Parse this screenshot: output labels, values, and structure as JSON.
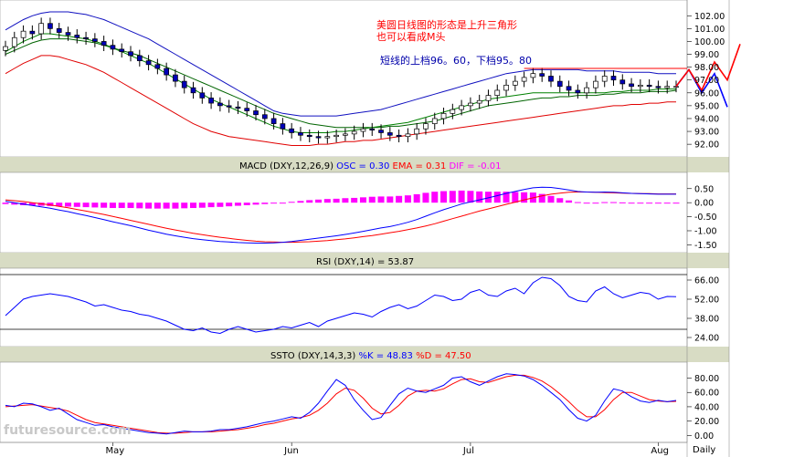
{
  "chart_data": [
    {
      "type": "candlestick",
      "panel": "price",
      "annotations": [
        "美圆日线图的形态是上升三角形",
        "也可以看成M头",
        "短线的上档96。60，下档95。80"
      ],
      "yticks": [
        92.0,
        93.0,
        94.0,
        95.0,
        96.0,
        97.0,
        98.0,
        99.0,
        100.0,
        101.0,
        102.0
      ],
      "ylim": [
        91.3,
        102.8
      ],
      "series": [
        {
          "name": "close",
          "values": [
            99.6,
            100.3,
            100.8,
            100.6,
            101.4,
            101.0,
            100.7,
            100.5,
            100.3,
            100.2,
            100.0,
            99.7,
            99.4,
            99.2,
            98.9,
            98.5,
            98.2,
            97.9,
            97.4,
            96.9,
            96.4,
            96.0,
            95.6,
            95.2,
            95.0,
            94.9,
            94.8,
            94.6,
            94.3,
            94.0,
            93.6,
            93.2,
            92.9,
            92.7,
            92.6,
            92.5,
            92.6,
            92.7,
            92.8,
            93.0,
            93.2,
            93.1,
            92.9,
            92.7,
            92.6,
            92.8,
            93.2,
            93.6,
            94.0,
            94.4,
            94.7,
            95.0,
            95.2,
            95.4,
            95.8,
            96.2,
            96.6,
            96.9,
            97.2,
            97.5,
            97.3,
            96.9,
            96.5,
            96.2,
            96.0,
            96.4,
            96.9,
            97.3,
            97.0,
            96.7,
            96.5,
            96.6,
            96.5,
            96.4,
            96.5,
            96.5
          ]
        },
        {
          "name": "ma_short",
          "values": [
            99.2,
            99.6,
            100.0,
            100.3,
            100.6,
            100.6,
            100.5,
            100.4,
            100.3,
            100.2,
            100.0,
            99.8,
            99.5,
            99.2,
            98.9,
            98.6,
            98.3,
            97.9,
            97.5,
            97.1,
            96.7,
            96.3,
            95.9,
            95.5,
            95.2,
            94.9,
            94.6,
            94.3,
            94.0,
            93.7,
            93.4,
            93.2,
            93.0,
            92.9,
            92.9,
            92.9,
            92.9,
            93.0,
            93.0,
            93.1,
            93.2,
            93.3,
            93.4,
            93.5,
            93.6,
            93.7,
            93.9,
            94.1,
            94.3,
            94.5,
            94.7,
            94.9,
            95.1,
            95.3,
            95.5,
            95.6,
            95.7,
            95.8,
            95.9,
            96.0,
            96.0,
            96.0,
            96.0,
            96.0,
            96.0,
            96.0,
            96.0,
            96.0,
            96.1,
            96.1,
            96.2,
            96.2,
            96.2,
            96.3,
            96.3,
            96.3
          ]
        },
        {
          "name": "ma_long",
          "values": [
            99.0,
            99.3,
            99.6,
            99.9,
            100.1,
            100.2,
            100.2,
            100.2,
            100.1,
            100.0,
            99.9,
            99.7,
            99.5,
            99.3,
            99.1,
            98.9,
            98.6,
            98.3,
            98.0,
            97.7,
            97.4,
            97.1,
            96.8,
            96.5,
            96.2,
            95.9,
            95.6,
            95.3,
            95.0,
            94.7,
            94.4,
            94.2,
            94.0,
            93.8,
            93.6,
            93.5,
            93.4,
            93.3,
            93.3,
            93.3,
            93.3,
            93.3,
            93.3,
            93.4,
            93.4,
            93.5,
            93.6,
            93.7,
            93.8,
            94.0,
            94.2,
            94.4,
            94.6,
            94.8,
            95.0,
            95.1,
            95.2,
            95.3,
            95.4,
            95.5,
            95.6,
            95.6,
            95.7,
            95.7,
            95.8,
            95.8,
            95.8,
            95.9,
            95.9,
            96.0,
            96.0,
            96.0,
            96.1,
            96.1,
            96.1,
            96.2
          ]
        },
        {
          "name": "band_upper",
          "values": [
            100.9,
            101.3,
            101.7,
            102.0,
            102.2,
            102.3,
            102.3,
            102.3,
            102.2,
            102.1,
            101.9,
            101.7,
            101.4,
            101.1,
            100.8,
            100.5,
            100.2,
            99.8,
            99.4,
            99.0,
            98.6,
            98.2,
            97.8,
            97.4,
            97.0,
            96.6,
            96.2,
            95.8,
            95.4,
            95.0,
            94.6,
            94.4,
            94.3,
            94.2,
            94.2,
            94.2,
            94.2,
            94.2,
            94.3,
            94.4,
            94.5,
            94.6,
            94.7,
            94.9,
            95.1,
            95.3,
            95.5,
            95.7,
            95.9,
            96.1,
            96.3,
            96.5,
            96.7,
            96.9,
            97.1,
            97.3,
            97.5,
            97.6,
            97.7,
            97.8,
            97.8,
            97.8,
            97.8,
            97.8,
            97.8,
            97.7,
            97.7,
            97.7,
            97.7,
            97.6,
            97.6,
            97.6,
            97.6,
            97.5,
            97.5,
            97.5
          ]
        },
        {
          "name": "band_lower",
          "values": [
            97.5,
            97.9,
            98.3,
            98.6,
            98.9,
            98.9,
            98.8,
            98.6,
            98.4,
            98.2,
            97.9,
            97.6,
            97.2,
            96.8,
            96.4,
            96.0,
            95.6,
            95.2,
            94.8,
            94.4,
            94.0,
            93.6,
            93.3,
            93.0,
            92.8,
            92.6,
            92.5,
            92.4,
            92.3,
            92.2,
            92.1,
            92.0,
            91.9,
            91.9,
            91.9,
            92.0,
            92.0,
            92.1,
            92.2,
            92.2,
            92.3,
            92.3,
            92.4,
            92.5,
            92.6,
            92.7,
            92.8,
            92.9,
            93.0,
            93.1,
            93.2,
            93.3,
            93.4,
            93.5,
            93.6,
            93.7,
            93.8,
            93.9,
            94.0,
            94.1,
            94.2,
            94.3,
            94.4,
            94.5,
            94.6,
            94.7,
            94.8,
            94.9,
            95.0,
            95.0,
            95.1,
            95.1,
            95.2,
            95.2,
            95.3,
            95.3
          ]
        }
      ],
      "resistance": 97.9,
      "projection": [
        {
          "color": "#0000ff",
          "points": [
            [
              75,
              96.5
            ],
            [
              76,
              97.8
            ],
            [
              77,
              96.0
            ],
            [
              78,
              97.5
            ],
            [
              79,
              94.9
            ]
          ]
        },
        {
          "color": "#ff0000",
          "points": [
            [
              75,
              96.5
            ],
            [
              76,
              97.8
            ],
            [
              77,
              96.2
            ],
            [
              78,
              98.4
            ],
            [
              79,
              97.0
            ],
            [
              80,
              99.8
            ]
          ]
        }
      ]
    },
    {
      "type": "line",
      "panel": "macd",
      "title": "MACD (DXY,12,26,9)",
      "legend": [
        {
          "label": "OSC = 0.30",
          "color": "#0000ff"
        },
        {
          "label": "EMA = 0.31",
          "color": "#ff0000"
        },
        {
          "label": "DIF = -0.01",
          "color": "#ff00ff"
        }
      ],
      "yticks": [
        0.5,
        0.0,
        -0.5,
        -1.0,
        -1.5
      ],
      "ytick_labels": [
        "0.50",
        "0.00",
        "-0.50",
        "-1.00",
        "-1.50"
      ],
      "ylim": [
        -1.65,
        0.85
      ],
      "osc": [
        0.05,
        0.0,
        -0.05,
        -0.1,
        -0.15,
        -0.2,
        -0.26,
        -0.32,
        -0.39,
        -0.46,
        -0.53,
        -0.6,
        -0.68,
        -0.75,
        -0.82,
        -0.9,
        -0.98,
        -1.05,
        -1.12,
        -1.18,
        -1.23,
        -1.28,
        -1.32,
        -1.35,
        -1.38,
        -1.4,
        -1.42,
        -1.43,
        -1.44,
        -1.44,
        -1.43,
        -1.41,
        -1.38,
        -1.34,
        -1.3,
        -1.26,
        -1.22,
        -1.18,
        -1.13,
        -1.08,
        -1.02,
        -0.96,
        -0.9,
        -0.85,
        -0.78,
        -0.7,
        -0.6,
        -0.48,
        -0.36,
        -0.25,
        -0.15,
        -0.05,
        0.03,
        0.1,
        0.17,
        0.25,
        0.33,
        0.4,
        0.47,
        0.53,
        0.55,
        0.54,
        0.5,
        0.45,
        0.4,
        0.38,
        0.37,
        0.38,
        0.37,
        0.35,
        0.33,
        0.32,
        0.31,
        0.3,
        0.3,
        0.3
      ],
      "ema": [
        0.1,
        0.07,
        0.04,
        0.0,
        -0.04,
        -0.08,
        -0.13,
        -0.18,
        -0.24,
        -0.3,
        -0.36,
        -0.42,
        -0.49,
        -0.56,
        -0.63,
        -0.7,
        -0.77,
        -0.84,
        -0.91,
        -0.97,
        -1.03,
        -1.09,
        -1.14,
        -1.19,
        -1.23,
        -1.27,
        -1.31,
        -1.34,
        -1.37,
        -1.39,
        -1.4,
        -1.41,
        -1.41,
        -1.4,
        -1.39,
        -1.37,
        -1.35,
        -1.32,
        -1.29,
        -1.25,
        -1.21,
        -1.17,
        -1.12,
        -1.07,
        -1.02,
        -0.96,
        -0.9,
        -0.83,
        -0.75,
        -0.66,
        -0.57,
        -0.48,
        -0.39,
        -0.3,
        -0.22,
        -0.14,
        -0.06,
        0.02,
        0.1,
        0.17,
        0.24,
        0.3,
        0.34,
        0.37,
        0.38,
        0.38,
        0.37,
        0.36,
        0.35,
        0.34,
        0.33,
        0.32,
        0.32,
        0.31,
        0.31,
        0.31
      ],
      "dif": [
        -0.05,
        -0.07,
        -0.09,
        -0.1,
        -0.11,
        -0.12,
        -0.13,
        -0.14,
        -0.15,
        -0.16,
        -0.17,
        -0.18,
        -0.19,
        -0.19,
        -0.19,
        -0.2,
        -0.21,
        -0.21,
        -0.21,
        -0.21,
        -0.2,
        -0.19,
        -0.18,
        -0.16,
        -0.15,
        -0.13,
        -0.11,
        -0.09,
        -0.07,
        -0.05,
        -0.03,
        0.0,
        0.03,
        0.06,
        0.09,
        0.11,
        0.13,
        0.14,
        0.16,
        0.17,
        0.19,
        0.21,
        0.22,
        0.22,
        0.24,
        0.26,
        0.3,
        0.35,
        0.39,
        0.41,
        0.42,
        0.43,
        0.42,
        0.4,
        0.39,
        0.39,
        0.39,
        0.38,
        0.37,
        0.36,
        0.31,
        0.24,
        0.16,
        0.08,
        0.02,
        0.0,
        0.0,
        0.02,
        0.02,
        0.01,
        0.0,
        0.0,
        -0.01,
        -0.01,
        -0.01,
        -0.01
      ]
    },
    {
      "type": "line",
      "panel": "rsi",
      "title": "RSI (DXY,14) = 53.87",
      "yticks": [
        66.0,
        52.0,
        38.0,
        24.0
      ],
      "ytick_labels": [
        "66.00",
        "52.00",
        "38.00",
        "24.00"
      ],
      "ylim": [
        20,
        72
      ],
      "levels": [
        70,
        30
      ],
      "values": [
        40,
        46,
        52,
        54,
        55,
        56,
        55,
        54,
        52,
        50,
        47,
        48,
        46,
        44,
        43,
        41,
        40,
        38,
        36,
        33,
        30,
        29,
        31,
        28,
        27,
        30,
        32,
        30,
        28,
        29,
        30,
        32,
        31,
        33,
        35,
        32,
        36,
        38,
        40,
        42,
        41,
        39,
        43,
        46,
        48,
        45,
        47,
        51,
        55,
        54,
        51,
        52,
        57,
        59,
        55,
        54,
        58,
        60,
        56,
        64,
        68,
        67,
        62,
        54,
        51,
        50,
        58,
        61,
        56,
        53,
        55,
        57,
        56,
        52,
        54,
        53.87
      ]
    },
    {
      "type": "line",
      "panel": "stochastic",
      "title": "SSTO (DXY,14,3,3)",
      "legend": [
        {
          "label": "%K = 48.83",
          "color": "#0000ff"
        },
        {
          "label": "%D = 47.50",
          "color": "#ff0000"
        }
      ],
      "yticks": [
        80.0,
        60.0,
        40.0,
        20.0,
        0.0
      ],
      "ytick_labels": [
        "80.00",
        "60.00",
        "40.00",
        "20.00",
        "0.00"
      ],
      "ylim": [
        -6,
        96
      ],
      "k": [
        42,
        40,
        45,
        44,
        40,
        35,
        38,
        30,
        22,
        18,
        14,
        15,
        12,
        10,
        8,
        6,
        4,
        3,
        2,
        4,
        6,
        5,
        5,
        6,
        8,
        8,
        10,
        12,
        15,
        18,
        20,
        23,
        26,
        24,
        32,
        45,
        62,
        78,
        70,
        50,
        35,
        22,
        25,
        42,
        58,
        66,
        62,
        60,
        65,
        70,
        80,
        82,
        75,
        70,
        76,
        82,
        86,
        85,
        83,
        78,
        70,
        60,
        50,
        36,
        24,
        20,
        28,
        48,
        65,
        62,
        54,
        48,
        46,
        49,
        47,
        48.83
      ],
      "d": [
        40,
        41,
        42,
        43,
        41,
        39,
        37,
        34,
        28,
        22,
        18,
        16,
        14,
        12,
        10,
        8,
        6,
        4,
        3,
        3,
        4,
        5,
        5,
        5,
        6,
        7,
        8,
        10,
        12,
        15,
        17,
        20,
        23,
        25,
        28,
        35,
        45,
        58,
        66,
        63,
        52,
        38,
        30,
        32,
        42,
        55,
        62,
        63,
        62,
        65,
        72,
        78,
        79,
        75,
        74,
        78,
        82,
        84,
        84,
        81,
        76,
        68,
        58,
        47,
        35,
        26,
        26,
        36,
        50,
        60,
        60,
        55,
        50,
        48,
        47,
        47.5
      ]
    }
  ],
  "xaxis": {
    "ticks": [
      {
        "label": "May",
        "index": 12
      },
      {
        "label": "Jun",
        "index": 32
      },
      {
        "label": "Jul",
        "index": 52
      },
      {
        "label": "Aug",
        "index": 73
      }
    ],
    "period": "Daily"
  },
  "watermark": "futuresource.com",
  "colors": {
    "panel_bg": "#ffffff",
    "axis_bg": "#ffffff",
    "header_bg": "#d8dcc4",
    "candle_up": "#ffffff",
    "candle_down": "#0000b8",
    "ma_short": "#008000",
    "ma_long": "#006400",
    "band_upper": "#1010c0",
    "band_lower": "#e00000",
    "annotation": "#ff0000",
    "annotation_alt": "#0000aa"
  }
}
